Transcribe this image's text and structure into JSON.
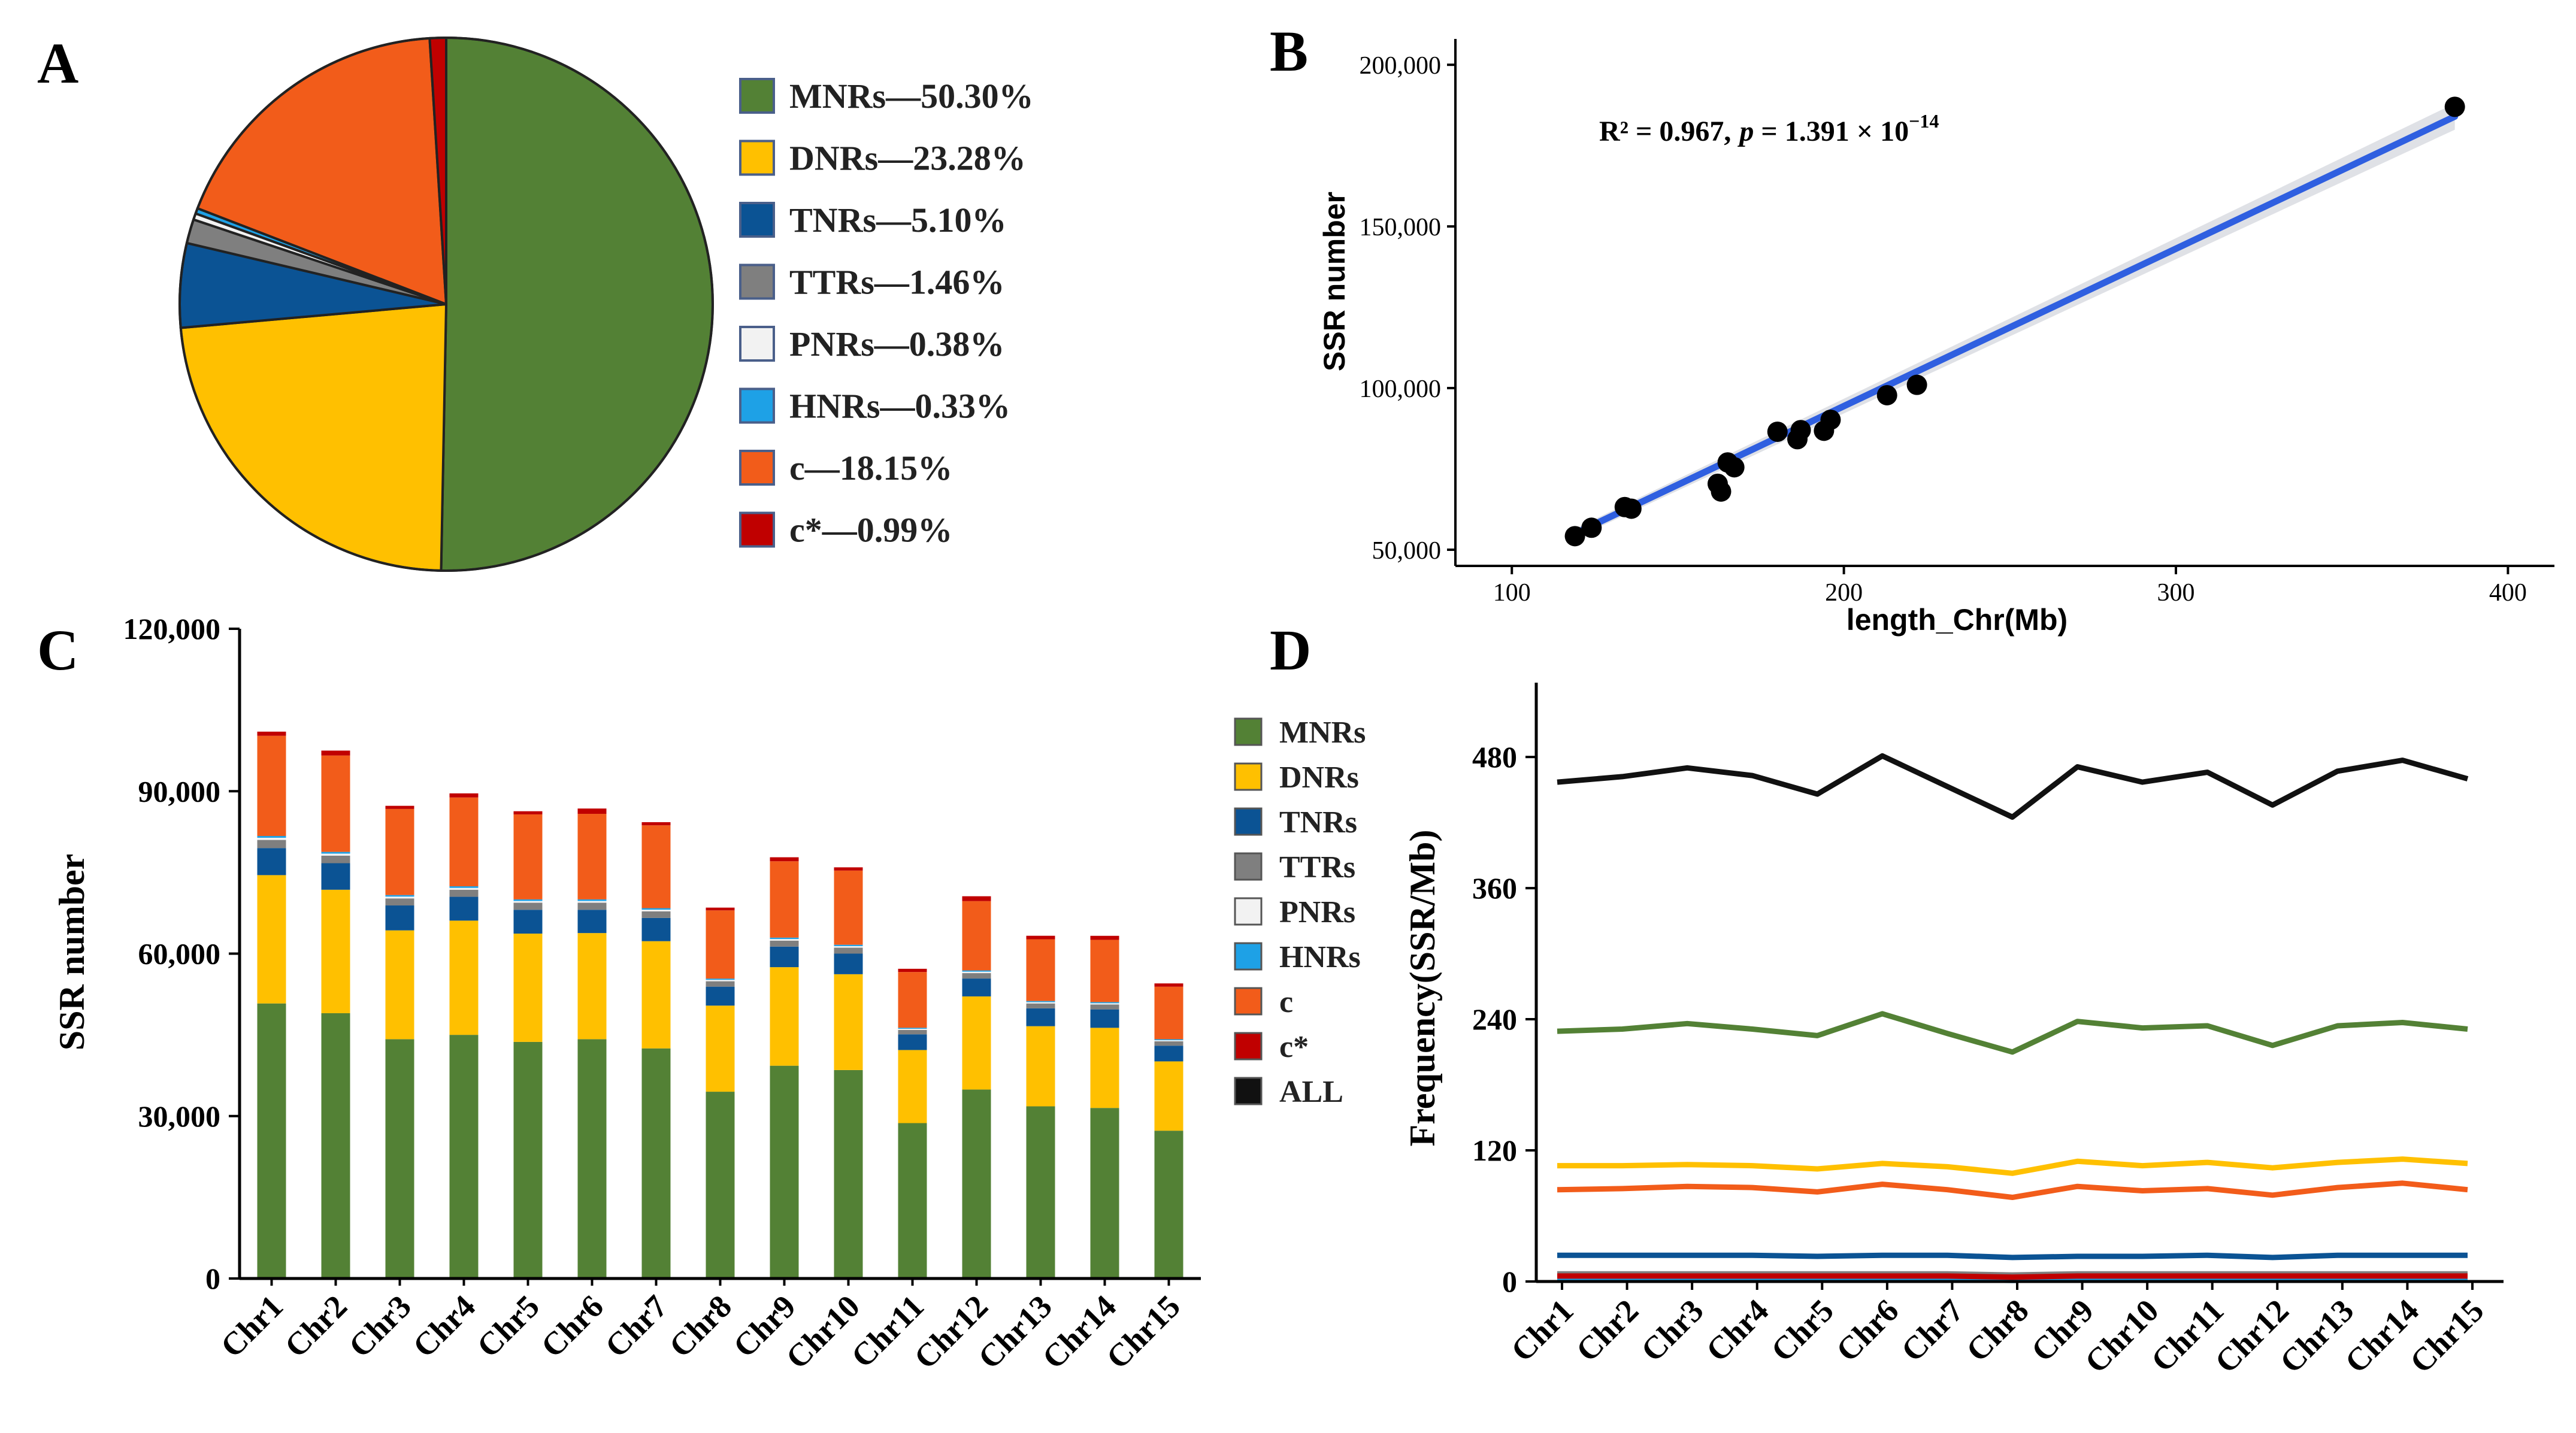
{
  "figure": {
    "panels": {
      "a": "A",
      "b": "B",
      "c": "C",
      "d": "D"
    }
  },
  "chart_data": [
    {
      "panel": "A",
      "type": "pie",
      "colors": [
        "#538135",
        "#FFC000",
        "#0B5394",
        "#7F7F7F",
        "#F2F2F2",
        "#1EA1E6",
        "#F25C1A",
        "#C00000"
      ],
      "slices": [
        {
          "name": "MNRs",
          "value": 50.3,
          "label": "MNRs—50.30%"
        },
        {
          "name": "DNRs",
          "value": 23.28,
          "label": "DNRs—23.28%"
        },
        {
          "name": "TNRs",
          "value": 5.1,
          "label": "TNRs—5.10%"
        },
        {
          "name": "TTRs",
          "value": 1.46,
          "label": "TTRs—1.46%"
        },
        {
          "name": "PNRs",
          "value": 0.38,
          "label": "PNRs—0.38%"
        },
        {
          "name": "HNRs",
          "value": 0.33,
          "label": "HNRs—0.33%"
        },
        {
          "name": "c",
          "value": 18.15,
          "label": "c—18.15%"
        },
        {
          "name": "c*",
          "value": 0.99,
          "label": "c*—0.99%"
        }
      ],
      "legend": "right"
    },
    {
      "panel": "B",
      "type": "scatter",
      "xlabel": "length_Chr(Mb)",
      "ylabel": "SSR number",
      "xlim": [
        83,
        414
      ],
      "ylim": [
        45000,
        208000
      ],
      "xticks": [
        100,
        200,
        300,
        400
      ],
      "xtick_labels": [
        "100",
        "200",
        "300",
        "400"
      ],
      "yticks": [
        50000,
        100000,
        150000,
        200000
      ],
      "ytick_labels": [
        "50,000",
        "100,000",
        "150,000",
        "200,000"
      ],
      "annotation": {
        "r2_label": "R² = 0.967,",
        "p_symbol": "p",
        "p_value": "= 1.391 × 10",
        "p_exp": "−14"
      },
      "fit": {
        "x": [
          119,
          384
        ],
        "y": [
          55000,
          184000
        ],
        "color": "#2F5FE0"
      },
      "points": {
        "x": [
          119,
          124,
          134,
          136,
          162,
          163,
          165,
          167,
          180,
          186,
          187,
          194,
          196,
          213,
          222,
          384
        ],
        "y": [
          54200,
          56800,
          63200,
          62700,
          70400,
          68000,
          77000,
          75500,
          86500,
          84200,
          87000,
          86800,
          90200,
          97800,
          101000,
          187000
        ]
      }
    },
    {
      "panel": "C",
      "type": "bar",
      "stacked": true,
      "ylabel": "SSR number",
      "ylim": [
        0,
        120000
      ],
      "yticks": [
        0,
        30000,
        60000,
        90000,
        120000
      ],
      "ytick_labels": [
        "0",
        "30,000",
        "60,000",
        "90,000",
        "120,000"
      ],
      "categories": [
        "Chr1",
        "Chr2",
        "Chr3",
        "Chr4",
        "Chr5",
        "Chr6",
        "Chr7",
        "Chr8",
        "Chr9",
        "Chr10",
        "Chr11",
        "Chr12",
        "Chr13",
        "Chr14",
        "Chr15"
      ],
      "series": [
        {
          "name": "MNRs",
          "color": "#538135",
          "values": [
            50800,
            49000,
            44200,
            45000,
            43700,
            44200,
            42500,
            34500,
            39300,
            38500,
            28700,
            34900,
            31800,
            31500,
            27300
          ]
        },
        {
          "name": "DNRs",
          "color": "#FFC000",
          "values": [
            23700,
            22800,
            20100,
            21100,
            20000,
            19600,
            19800,
            15900,
            18200,
            17700,
            13500,
            17200,
            14800,
            14800,
            12800
          ]
        },
        {
          "name": "TNRs",
          "color": "#0B5394",
          "values": [
            5000,
            4900,
            4600,
            4400,
            4400,
            4300,
            4300,
            3500,
            3800,
            3800,
            2900,
            3300,
            3300,
            3400,
            2900
          ]
        },
        {
          "name": "TTRs",
          "color": "#7F7F7F",
          "values": [
            1500,
            1400,
            1300,
            1300,
            1300,
            1300,
            1200,
            1000,
            1100,
            1100,
            800,
            1000,
            900,
            900,
            800
          ]
        },
        {
          "name": "PNRs",
          "color": "#F2F2F2",
          "values": [
            400,
            370,
            330,
            340,
            330,
            330,
            320,
            260,
            300,
            290,
            220,
            270,
            240,
            240,
            210
          ]
        },
        {
          "name": "HNRs",
          "color": "#1EA1E6",
          "values": [
            330,
            320,
            290,
            300,
            290,
            290,
            280,
            230,
            260,
            250,
            190,
            230,
            210,
            210,
            180
          ]
        },
        {
          "name": "c",
          "color": "#F25C1A",
          "values": [
            18500,
            17800,
            15900,
            16400,
            15700,
            15800,
            15300,
            12600,
            14100,
            13700,
            10300,
            12800,
            11400,
            11500,
            9700
          ]
        },
        {
          "name": "c*",
          "color": "#C00000",
          "values": [
            770,
            910,
            580,
            760,
            580,
            980,
            580,
            510,
            740,
            600,
            590,
            900,
            650,
            740,
            610
          ]
        }
      ],
      "legend": "right"
    },
    {
      "panel": "D",
      "type": "line",
      "ylabel": "Frequency(SSR/Mb)",
      "ylim": [
        0,
        548
      ],
      "yticks": [
        0,
        120,
        240,
        360,
        480
      ],
      "ytick_labels": [
        "0",
        "120",
        "240",
        "360",
        "480"
      ],
      "categories": [
        "Chr1",
        "Chr2",
        "Chr3",
        "Chr4",
        "Chr5",
        "Chr6",
        "Chr7",
        "Chr8",
        "Chr9",
        "Chr10",
        "Chr11",
        "Chr12",
        "Chr13",
        "Chr14",
        "Chr15"
      ],
      "series": [
        {
          "name": "MNRs",
          "color": "#538135",
          "values": [
            229,
            231,
            236,
            231,
            225,
            245,
            227,
            210,
            238,
            232,
            234,
            216,
            234,
            237,
            231
          ]
        },
        {
          "name": "DNRs",
          "color": "#FFC000",
          "values": [
            106,
            106,
            107,
            106,
            103,
            108,
            105,
            99,
            110,
            106,
            109,
            104,
            109,
            112,
            108
          ]
        },
        {
          "name": "TNRs",
          "color": "#0B5394",
          "values": [
            24,
            24,
            24,
            24,
            23,
            24,
            24,
            22,
            23,
            23,
            24,
            22,
            24,
            24,
            24
          ]
        },
        {
          "name": "TTRs",
          "color": "#7F7F7F",
          "values": [
            7,
            7,
            7,
            7,
            7,
            7,
            7,
            6,
            7,
            7,
            7,
            7,
            7,
            7,
            7
          ]
        },
        {
          "name": "PNRs",
          "color": "#F2F2F2",
          "values": [
            2,
            2,
            2,
            2,
            2,
            2,
            2,
            2,
            2,
            2,
            2,
            2,
            2,
            2,
            2
          ]
        },
        {
          "name": "HNRs",
          "color": "#1EA1E6",
          "values": [
            2,
            2,
            2,
            2,
            2,
            2,
            2,
            1,
            2,
            2,
            2,
            2,
            2,
            2,
            2
          ]
        },
        {
          "name": "c",
          "color": "#F25C1A",
          "values": [
            84,
            85,
            87,
            86,
            82,
            89,
            84,
            77,
            87,
            83,
            85,
            79,
            86,
            90,
            84
          ]
        },
        {
          "name": "c*",
          "color": "#C00000",
          "values": [
            5,
            5,
            5,
            5,
            5,
            5,
            5,
            4,
            5,
            5,
            5,
            5,
            5,
            5,
            5
          ]
        },
        {
          "name": "ALL",
          "color": "#111111",
          "values": [
            457,
            462,
            470,
            463,
            446,
            481,
            453,
            425,
            471,
            457,
            466,
            436,
            467,
            477,
            460
          ]
        }
      ],
      "legend": "left"
    }
  ]
}
